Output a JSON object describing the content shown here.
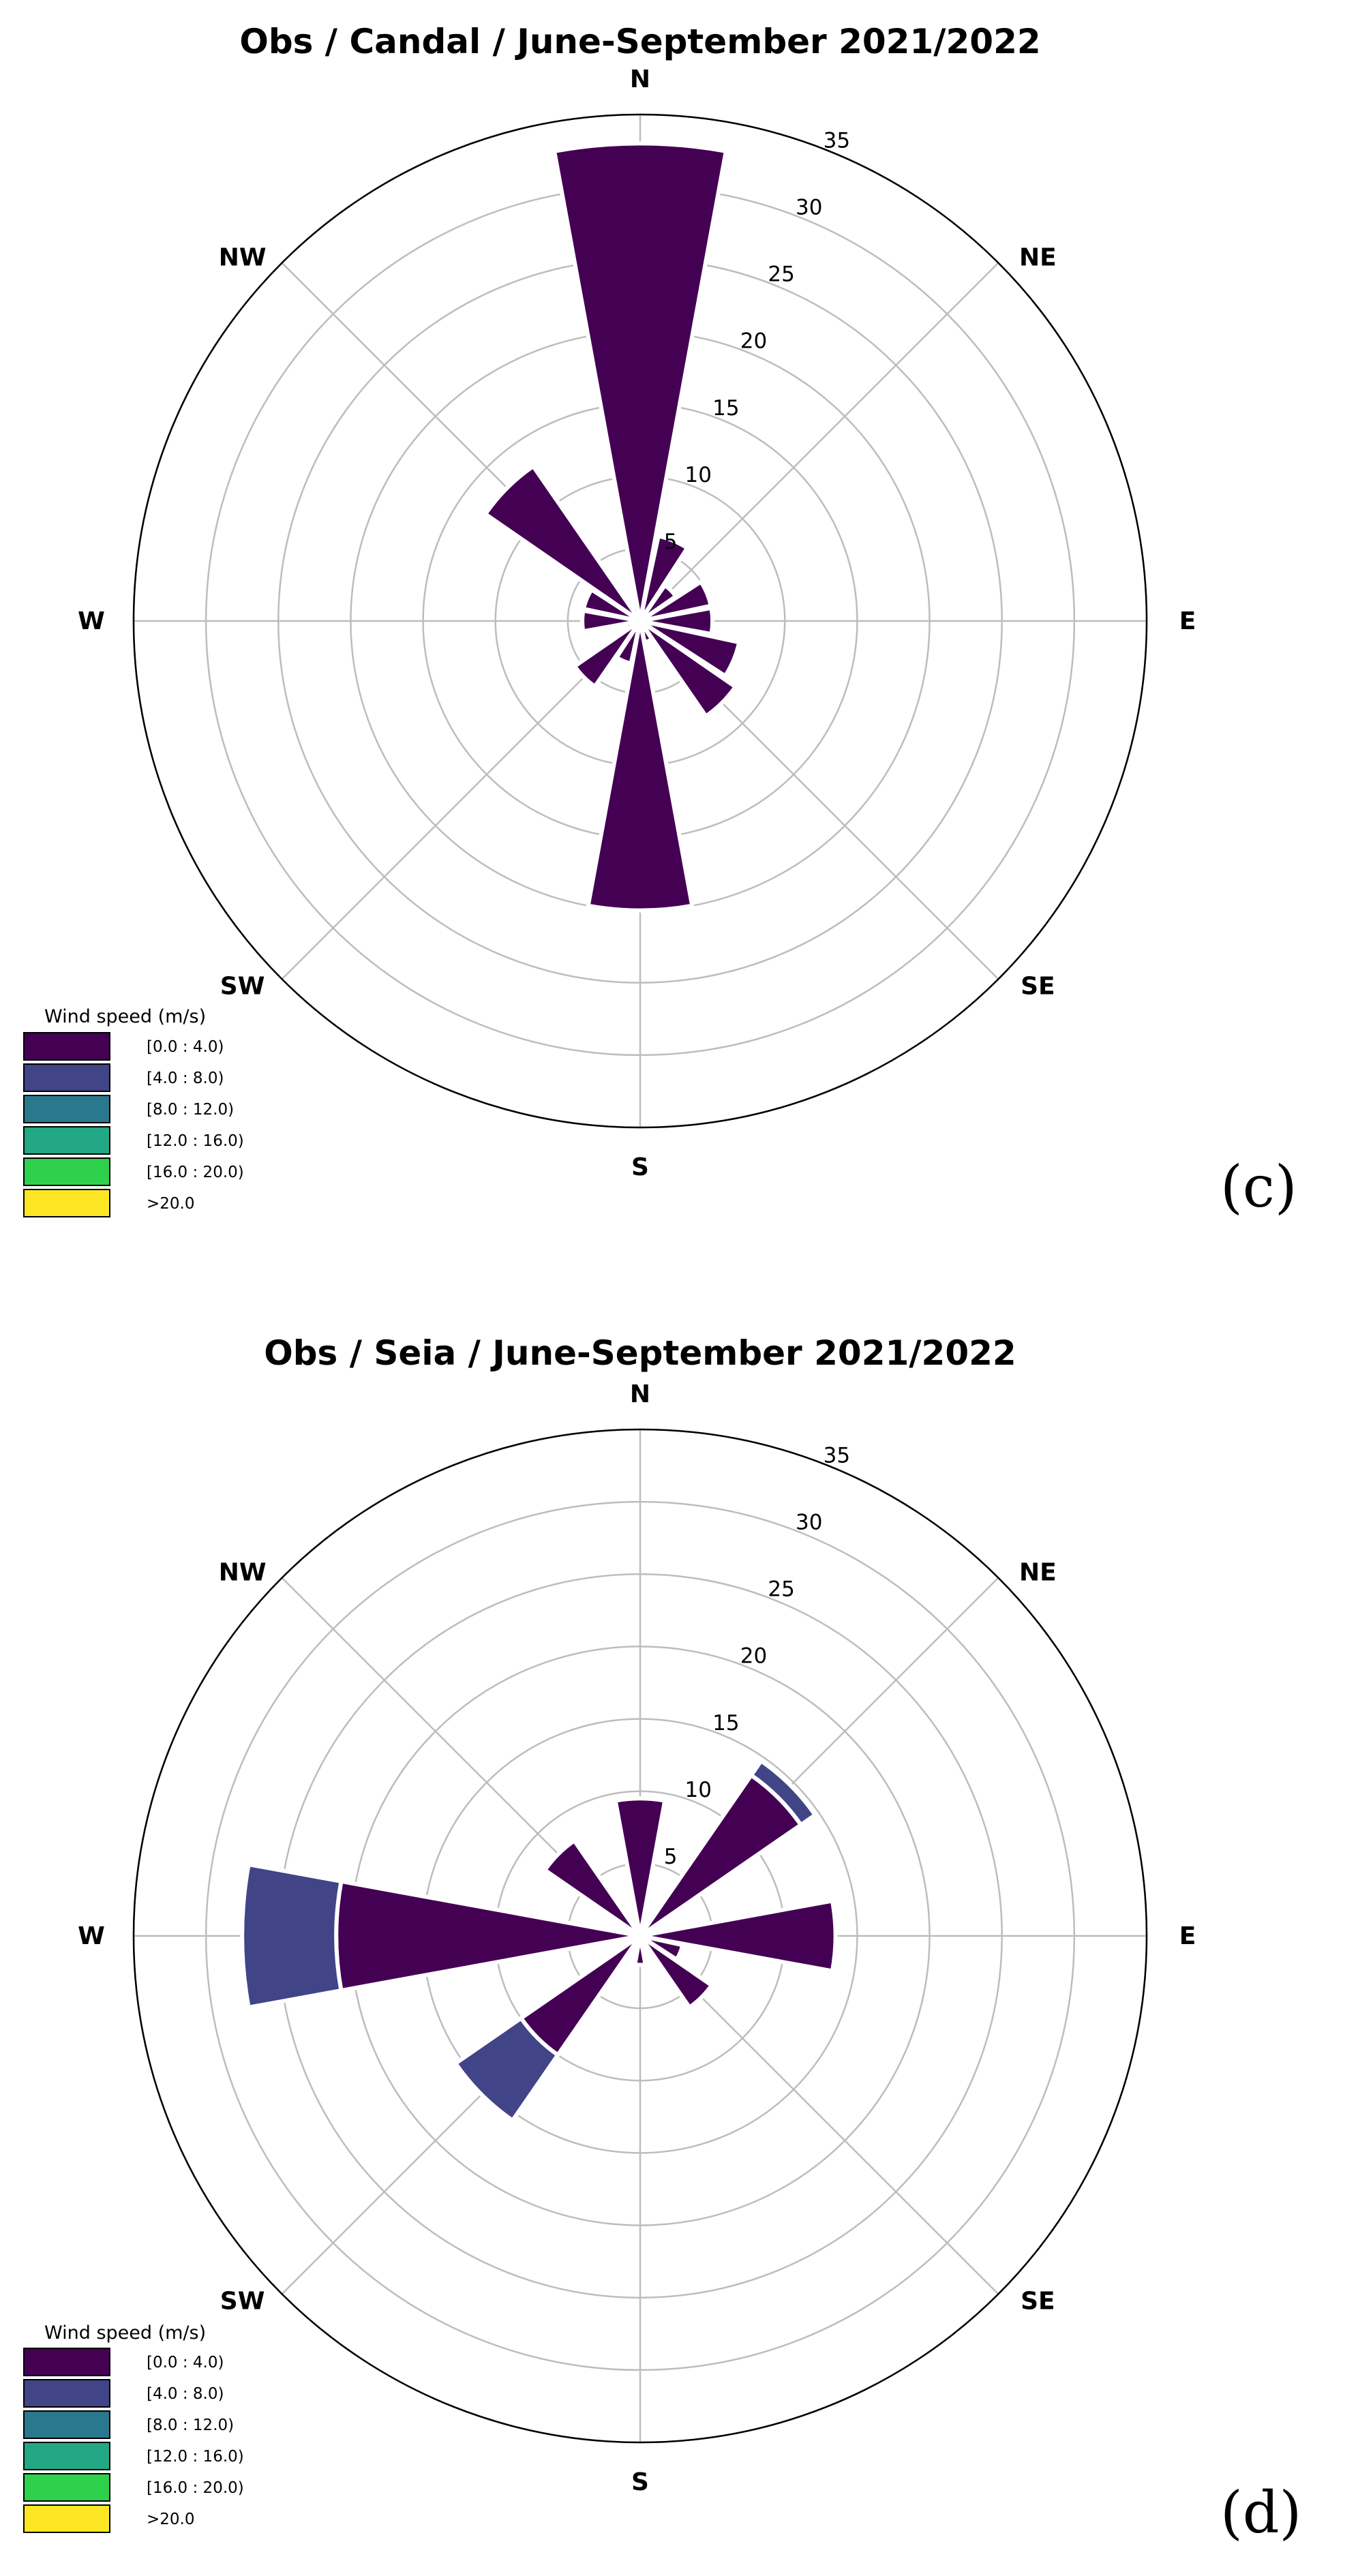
{
  "chart_data": [
    {
      "type": "windrose",
      "panel_label": "(c)",
      "title": "Obs /  Candal /  June-September 2021/2022",
      "directions": [
        "N",
        "NE",
        "E",
        "SE",
        "S",
        "SW",
        "W",
        "NW"
      ],
      "radial_ticks": [
        "5",
        "10",
        "15",
        "20",
        "25",
        "30",
        "35"
      ],
      "rmax": 35,
      "sector_order": [
        "N",
        "NNE",
        "NE",
        "ENE",
        "E",
        "ESE",
        "SE",
        "SSE",
        "S",
        "SSW",
        "SW",
        "WSW",
        "W",
        "WNW",
        "NW",
        "NNW"
      ],
      "series": [
        {
          "name": "[0.0 : 4.0)",
          "values": [
            33,
            6,
            3,
            5,
            5,
            7,
            8,
            1.5,
            20,
            3,
            5.5,
            1,
            4,
            4,
            13,
            1
          ]
        },
        {
          "name": "[4.0 : 8.0)",
          "values": [
            0,
            0,
            0,
            0,
            0,
            0,
            0,
            0,
            0,
            0,
            0,
            0,
            0,
            0,
            0,
            0
          ]
        },
        {
          "name": "[8.0 : 12.0)",
          "values": [
            0,
            0,
            0,
            0,
            0,
            0,
            0,
            0,
            0,
            0,
            0,
            0,
            0,
            0,
            0,
            0
          ]
        },
        {
          "name": "[12.0 : 16.0)",
          "values": [
            0,
            0,
            0,
            0,
            0,
            0,
            0,
            0,
            0,
            0,
            0,
            0,
            0,
            0,
            0,
            0
          ]
        },
        {
          "name": "[16.0 : 20.0)",
          "values": [
            0,
            0,
            0,
            0,
            0,
            0,
            0,
            0,
            0,
            0,
            0,
            0,
            0,
            0,
            0,
            0
          ]
        },
        {
          "name": ">20.0",
          "values": [
            0,
            0,
            0,
            0,
            0,
            0,
            0,
            0,
            0,
            0,
            0,
            0,
            0,
            0,
            0,
            0
          ]
        }
      ],
      "legend": {
        "title": "Wind speed (m/s)",
        "placement": "bottom-left",
        "items": [
          {
            "label": "[0.0 : 4.0)",
            "color": "#440154"
          },
          {
            "label": "[4.0 : 8.0)",
            "color": "#414487"
          },
          {
            "label": "[8.0 : 12.0)",
            "color": "#2a788e"
          },
          {
            "label": "[12.0 : 16.0)",
            "color": "#22a884"
          },
          {
            "label": "[16.0 : 20.0)",
            "color": "#2fd04c"
          },
          {
            "label": ">20.0",
            "color": "#fde725"
          }
        ]
      }
    },
    {
      "type": "windrose",
      "panel_label": "(d)",
      "title": "Obs /  Seia /  June-September 2021/2022",
      "directions": [
        "N",
        "NE",
        "E",
        "SE",
        "S",
        "SW",
        "W",
        "NW"
      ],
      "radial_ticks": [
        "5",
        "10",
        "15",
        "20",
        "25",
        "30",
        "35"
      ],
      "rmax": 35,
      "sector_order": [
        "N",
        "NNE",
        "NE",
        "ENE",
        "E",
        "ESE",
        "SE",
        "SSE",
        "S",
        "SSW",
        "SW",
        "WSW",
        "W",
        "WNW",
        "NW",
        "NNW"
      ],
      "series": [
        {
          "name": "[0.0 : 4.0)",
          "values": [
            9.5,
            0,
            13.5,
            0,
            13.5,
            3,
            6,
            0,
            2,
            0,
            10,
            0,
            21,
            0,
            8,
            0
          ]
        },
        {
          "name": "[4.0 : 8.0)",
          "values": [
            0,
            0,
            1.2,
            0,
            0,
            0,
            0,
            0,
            0,
            0,
            5.5,
            0,
            6.5,
            0,
            0,
            0
          ]
        },
        {
          "name": "[8.0 : 12.0)",
          "values": [
            0,
            0,
            0,
            0,
            0,
            0,
            0,
            0,
            0,
            0,
            0,
            0,
            0,
            0,
            0,
            0
          ]
        },
        {
          "name": "[12.0 : 16.0)",
          "values": [
            0,
            0,
            0,
            0,
            0,
            0,
            0,
            0,
            0,
            0,
            0,
            0,
            0,
            0,
            0,
            0
          ]
        },
        {
          "name": "[16.0 : 20.0)",
          "values": [
            0,
            0,
            0,
            0,
            0,
            0,
            0,
            0,
            0,
            0,
            0,
            0,
            0,
            0,
            0,
            0
          ]
        },
        {
          "name": ">20.0",
          "values": [
            0,
            0,
            0,
            0,
            0,
            0,
            0,
            0,
            0,
            0,
            0,
            0,
            0,
            0,
            0,
            0
          ]
        }
      ],
      "legend": {
        "title": "Wind speed (m/s)",
        "placement": "bottom-left",
        "items": [
          {
            "label": "[0.0 : 4.0)",
            "color": "#440154"
          },
          {
            "label": "[4.0 : 8.0)",
            "color": "#414487"
          },
          {
            "label": "[8.0 : 12.0)",
            "color": "#2a788e"
          },
          {
            "label": "[12.0 : 16.0)",
            "color": "#22a884"
          },
          {
            "label": "[16.0 : 20.0)",
            "color": "#2fd04c"
          },
          {
            "label": ">20.0",
            "color": "#fde725"
          }
        ]
      }
    }
  ]
}
